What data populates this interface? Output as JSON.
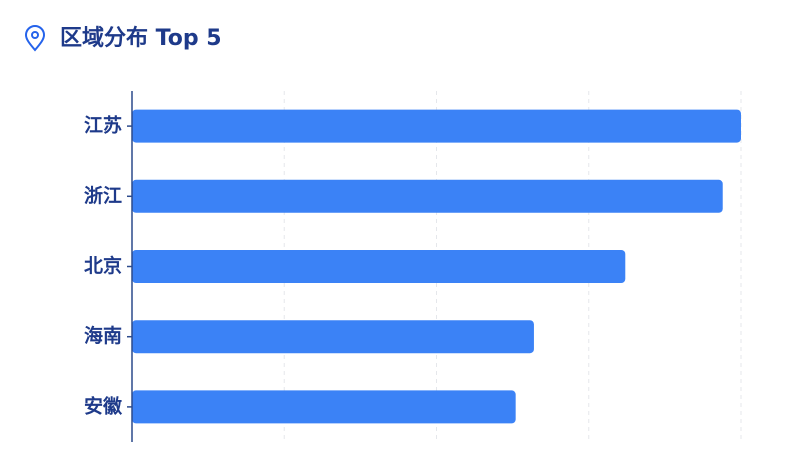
{
  "chart_data": {
    "type": "hbar",
    "title": "区域分布 Top 5",
    "categories": [
      "江苏",
      "浙江",
      "北京",
      "海南",
      "安徽"
    ],
    "values": [
      100,
      97,
      81,
      66,
      63
    ],
    "color": "#3b82f6",
    "xlim": [
      0,
      100
    ],
    "xticks": [
      0,
      25,
      50,
      75,
      100
    ],
    "grid": true
  }
}
